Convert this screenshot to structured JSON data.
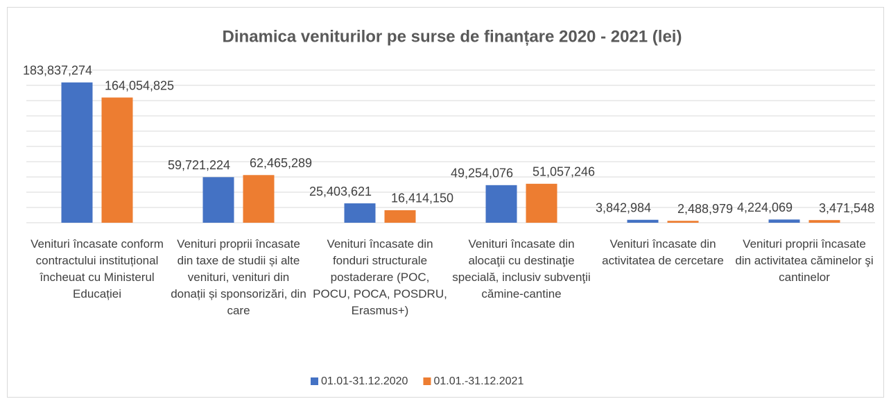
{
  "chart_data": {
    "type": "bar",
    "title": "Dinamica veniturilor pe surse de finanțare 2020 - 2021 (lei)",
    "categories": [
      "Venituri încasate conform contractului instituțional încheuat cu Ministerul Educației",
      "Venituri proprii încasate din taxe de studii și alte venituri, venituri din donații și sponsorizări, din care",
      "Venituri încasate din fonduri structurale postaderare (POC, POCU, POCA, POSDRU, Erasmus+)",
      "Venituri încasate din alocaţii cu destinaţie specială, inclusiv subvenţii cămine-cantine",
      "Venituri încasate din activitatea de cercetare",
      "Venituri proprii încasate din activitatea căminelor şi cantinelor"
    ],
    "series": [
      {
        "name": "01.01-31.12.2020",
        "color": "#4472c4",
        "values": [
          183837274,
          59721224,
          25403621,
          49254076,
          3842984,
          4224069
        ],
        "value_labels": [
          "183,837,274",
          "59,721,224",
          "25,403,621",
          "49,254,076",
          "3,842,984",
          "4,224,069"
        ]
      },
      {
        "name": "01.01.-31.12.2021",
        "color": "#ed7d31",
        "values": [
          164054825,
          62465289,
          16414150,
          51057246,
          2488979,
          3471548
        ],
        "value_labels": [
          "164,054,825",
          "62,465,289",
          "16,414,150",
          "51,057,246",
          "2,488,979",
          "3,471,548"
        ]
      }
    ],
    "ylim": [
      0,
      200000000
    ],
    "yticks": [
      0,
      20000000,
      40000000,
      60000000,
      80000000,
      100000000,
      120000000,
      140000000,
      160000000,
      180000000,
      200000000
    ],
    "grid": true,
    "legend": "bottom"
  }
}
